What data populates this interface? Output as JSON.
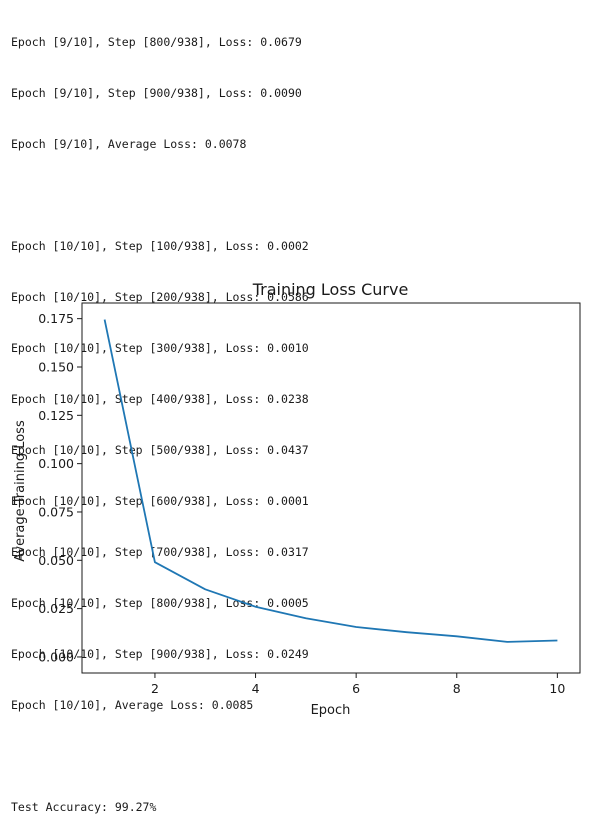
{
  "log": {
    "block1": [
      "Epoch [9/10], Step [800/938], Loss: 0.0679",
      "Epoch [9/10], Step [900/938], Loss: 0.0090",
      "Epoch [9/10], Average Loss: 0.0078"
    ],
    "block2": [
      "Epoch [10/10], Step [100/938], Loss: 0.0002",
      "Epoch [10/10], Step [200/938], Loss: 0.0586",
      "Epoch [10/10], Step [300/938], Loss: 0.0010",
      "Epoch [10/10], Step [400/938], Loss: 0.0238",
      "Epoch [10/10], Step [500/938], Loss: 0.0437",
      "Epoch [10/10], Step [600/938], Loss: 0.0001",
      "Epoch [10/10], Step [700/938], Loss: 0.0317",
      "Epoch [10/10], Step [800/938], Loss: 0.0005",
      "Epoch [10/10], Step [900/938], Loss: 0.0249",
      "Epoch [10/10], Average Loss: 0.0085"
    ],
    "accuracy": "Test Accuracy: 99.27%"
  },
  "chart_data": {
    "type": "line",
    "title": "Training Loss Curve",
    "xlabel": "Epoch",
    "ylabel": "Average Training Loss",
    "x": [
      1,
      2,
      3,
      4,
      5,
      6,
      7,
      8,
      9,
      10
    ],
    "series": [
      {
        "color": "#1f77b4",
        "values": [
          0.1745,
          0.049,
          0.035,
          0.026,
          0.02,
          0.0155,
          0.0128,
          0.0107,
          0.0078,
          0.0085
        ]
      }
    ],
    "xticks": [
      2,
      4,
      6,
      8,
      10
    ],
    "xtick_labels": [
      "2",
      "4",
      "6",
      "8",
      "10"
    ],
    "yticks": [
      0.0,
      0.025,
      0.05,
      0.075,
      0.1,
      0.125,
      0.15,
      0.175
    ],
    "ytick_labels": [
      "0.000",
      "0.025",
      "0.050",
      "0.075",
      "0.100",
      "0.125",
      "0.150",
      "0.175"
    ],
    "xlim": [
      0.55,
      10.45
    ],
    "ylim": [
      -0.0083,
      0.1831
    ],
    "grid": false,
    "legend": "none"
  }
}
